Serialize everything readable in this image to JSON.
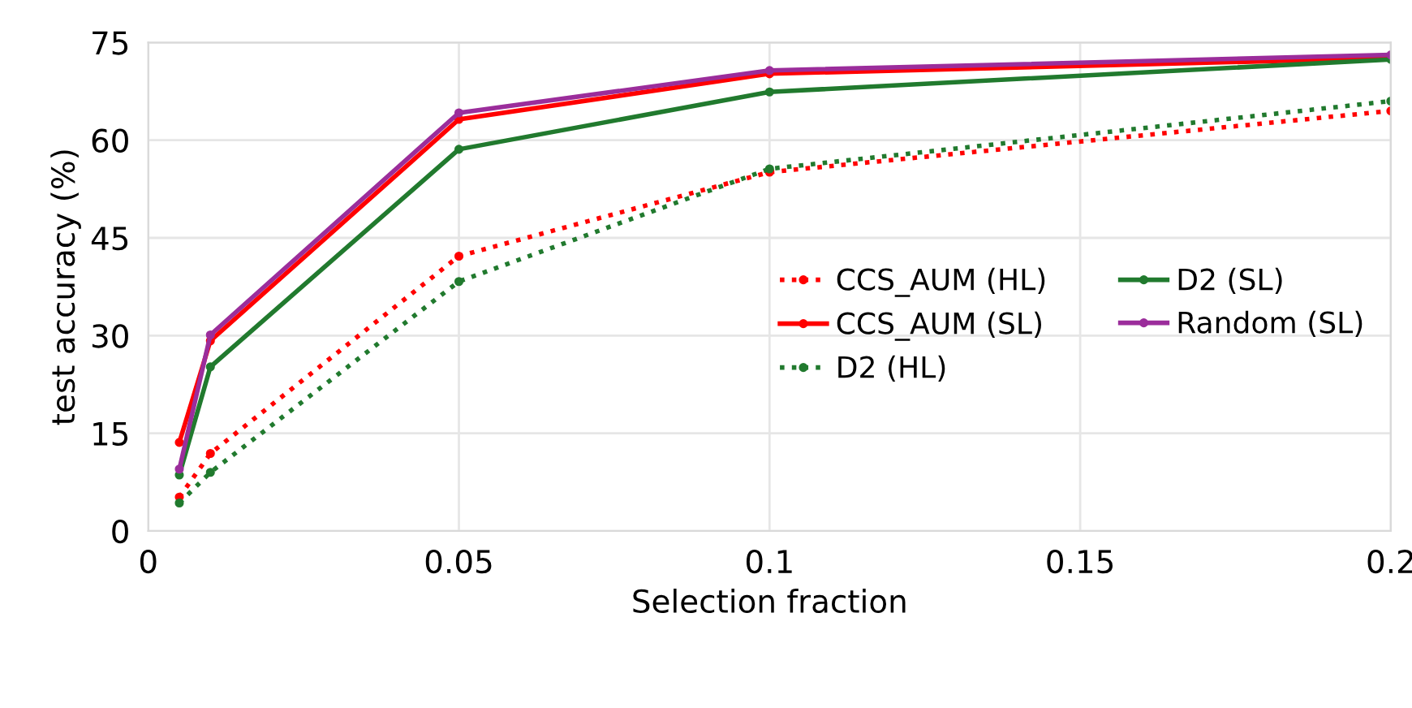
{
  "chart_data": {
    "type": "line",
    "xlabel": "Selection fraction",
    "ylabel": "test accuracy (%)",
    "x": [
      0.005,
      0.01,
      0.05,
      0.1,
      0.2
    ],
    "series": [
      {
        "name": "CCS_AUM (HL)",
        "color": "#ff0000",
        "line_style": "dotted",
        "values": [
          5.2,
          11.9,
          42.2,
          55.1,
          64.5
        ]
      },
      {
        "name": "CCS_AUM (SL)",
        "color": "#ff0000",
        "line_style": "solid",
        "values": [
          13.6,
          29.2,
          63.2,
          70.2,
          72.6
        ]
      },
      {
        "name": "D2 (HL)",
        "color": "#217a2e",
        "line_style": "dotted",
        "values": [
          4.3,
          9.0,
          38.3,
          55.6,
          66.0
        ]
      },
      {
        "name": "D2 (SL)",
        "color": "#217a2e",
        "line_style": "solid",
        "values": [
          8.6,
          25.2,
          58.6,
          67.4,
          72.4
        ]
      },
      {
        "name": "Random (SL)",
        "color": "#9b2d9b",
        "line_style": "solid",
        "values": [
          9.5,
          30.1,
          64.2,
          70.7,
          73.1
        ]
      }
    ],
    "xlim": [
      0,
      0.2
    ],
    "xticks": [
      0,
      0.05,
      0.1,
      0.15,
      0.2
    ],
    "ylim": [
      0,
      75
    ],
    "yticks": [
      0,
      15,
      30,
      45,
      60,
      75
    ],
    "grid": true,
    "legend": "right",
    "marker": "circle"
  }
}
